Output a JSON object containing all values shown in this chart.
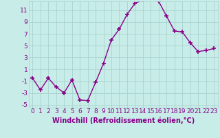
{
  "x": [
    0,
    1,
    2,
    3,
    4,
    5,
    6,
    7,
    8,
    9,
    10,
    11,
    12,
    13,
    14,
    15,
    16,
    17,
    18,
    19,
    20,
    21,
    22,
    23
  ],
  "y": [
    -0.5,
    -2.5,
    -0.5,
    -2.0,
    -3.0,
    -0.8,
    -4.2,
    -4.3,
    -1.2,
    2.0,
    6.0,
    7.8,
    10.3,
    12.2,
    12.7,
    12.8,
    12.5,
    10.0,
    7.5,
    7.3,
    5.5,
    4.0,
    4.2,
    4.5
  ],
  "line_color": "#880088",
  "marker": "+",
  "marker_size": 4,
  "marker_lw": 1.2,
  "bg_color": "#C8ECE8",
  "grid_color": "#A8D4D0",
  "xlabel": "Windchill (Refroidissement éolien,°C)",
  "xlim": [
    -0.5,
    23.5
  ],
  "ylim": [
    -5.5,
    12.5
  ],
  "yticks": [
    -5,
    -3,
    -1,
    1,
    3,
    5,
    7,
    9,
    11
  ],
  "xticks": [
    0,
    1,
    2,
    3,
    4,
    5,
    6,
    7,
    8,
    9,
    10,
    11,
    12,
    13,
    14,
    15,
    16,
    17,
    18,
    19,
    20,
    21,
    22,
    23
  ],
  "tick_color": "#880088",
  "tick_label_size": 6.5,
  "xlabel_size": 7.0,
  "line_width": 1.0
}
